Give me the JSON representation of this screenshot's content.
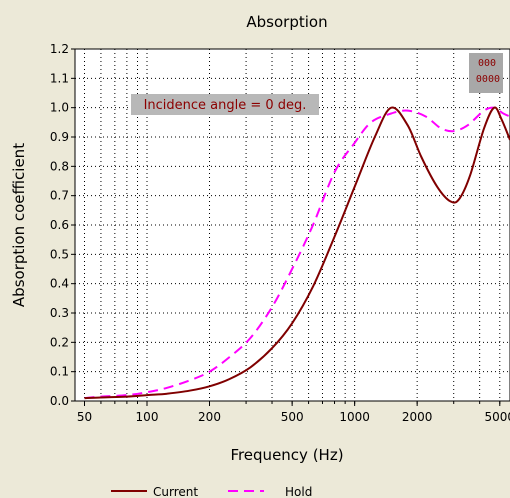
{
  "chart_data": {
    "type": "line",
    "title": "Absorption",
    "xlabel": "Frequency (Hz)",
    "ylabel": "Absorption coefficient",
    "x_scale": "log",
    "xlim": [
      45,
      5600
    ],
    "ylim": [
      0,
      1.2
    ],
    "grid": true,
    "x_ticks": [
      {
        "value": 50,
        "label": "50"
      },
      {
        "value": 100,
        "label": "100"
      },
      {
        "value": 200,
        "label": "200"
      },
      {
        "value": 500,
        "label": "500"
      },
      {
        "value": 1000,
        "label": "1000"
      },
      {
        "value": 2000,
        "label": "2000"
      },
      {
        "value": 5000,
        "label": "5000"
      }
    ],
    "y_ticks": [
      "0.0",
      "0.1",
      "0.2",
      "0.3",
      "0.4",
      "0.5",
      "0.6",
      "0.7",
      "0.8",
      "0.9",
      "1.0",
      "1.1",
      "1.2"
    ],
    "annotation": "Incidence angle = 0 deg.",
    "corner_box": [
      "000",
      "0000"
    ],
    "legend_position": "bottom",
    "series": [
      {
        "name": "Current",
        "color": "#800000",
        "style": "solid",
        "points": [
          [
            50,
            0.01
          ],
          [
            60,
            0.012
          ],
          [
            80,
            0.015
          ],
          [
            100,
            0.02
          ],
          [
            125,
            0.025
          ],
          [
            160,
            0.035
          ],
          [
            200,
            0.05
          ],
          [
            250,
            0.075
          ],
          [
            315,
            0.115
          ],
          [
            400,
            0.18
          ],
          [
            500,
            0.265
          ],
          [
            630,
            0.39
          ],
          [
            800,
            0.56
          ],
          [
            1000,
            0.73
          ],
          [
            1250,
            0.9
          ],
          [
            1500,
            1.0
          ],
          [
            1800,
            0.94
          ],
          [
            2100,
            0.83
          ],
          [
            2500,
            0.73
          ],
          [
            2900,
            0.68
          ],
          [
            3200,
            0.69
          ],
          [
            3600,
            0.77
          ],
          [
            4200,
            0.93
          ],
          [
            4700,
            1.0
          ],
          [
            5100,
            0.96
          ],
          [
            5600,
            0.89
          ]
        ]
      },
      {
        "name": "Hold",
        "color": "#ff00ff",
        "style": "dashed",
        "points": [
          [
            50,
            0.01
          ],
          [
            60,
            0.015
          ],
          [
            80,
            0.02
          ],
          [
            100,
            0.03
          ],
          [
            125,
            0.045
          ],
          [
            160,
            0.07
          ],
          [
            200,
            0.1
          ],
          [
            250,
            0.15
          ],
          [
            315,
            0.215
          ],
          [
            400,
            0.32
          ],
          [
            500,
            0.45
          ],
          [
            630,
            0.6
          ],
          [
            800,
            0.78
          ],
          [
            1000,
            0.88
          ],
          [
            1200,
            0.95
          ],
          [
            1500,
            0.98
          ],
          [
            1800,
            0.99
          ],
          [
            2200,
            0.97
          ],
          [
            2600,
            0.93
          ],
          [
            3000,
            0.92
          ],
          [
            3500,
            0.94
          ],
          [
            4200,
            0.99
          ],
          [
            4700,
            1.0
          ],
          [
            5200,
            0.98
          ],
          [
            5600,
            0.97
          ]
        ]
      }
    ]
  }
}
